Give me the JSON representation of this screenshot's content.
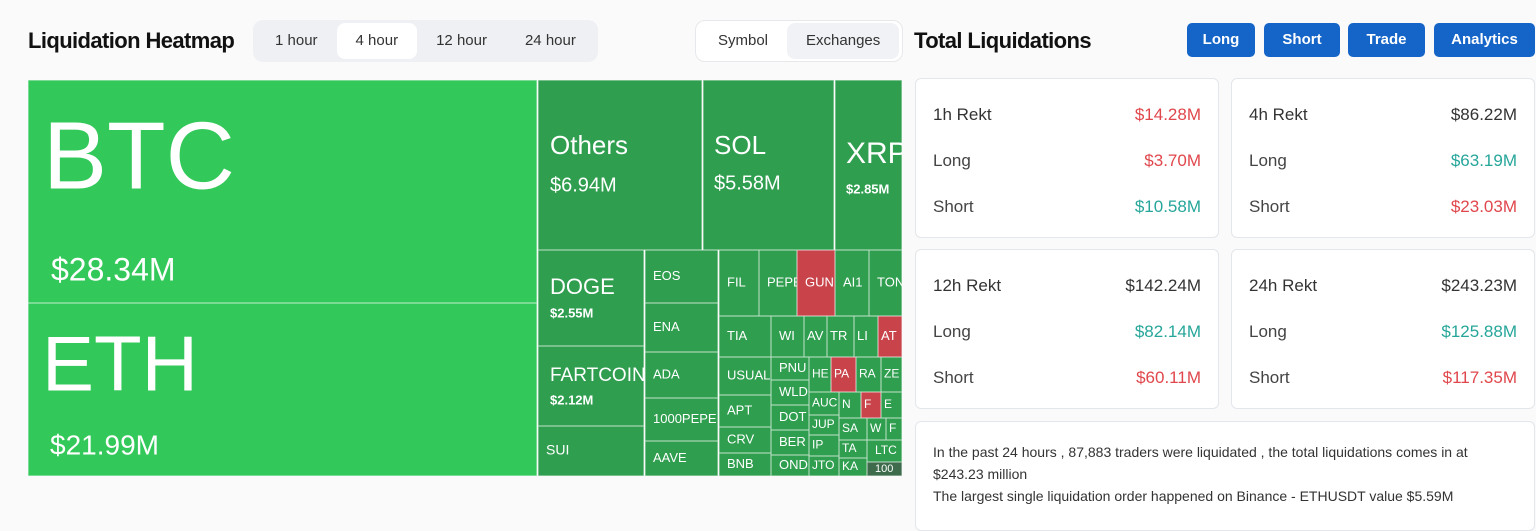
{
  "header": {
    "title": "Liquidation Heatmap",
    "time_tabs": [
      "1 hour",
      "4 hour",
      "12 hour",
      "24 hour"
    ],
    "selected_time_tab": 1,
    "view_tabs": [
      "Symbol",
      "Exchanges"
    ],
    "selected_view_tab": 0
  },
  "treemap": {
    "tiles": [
      {
        "label": "BTC",
        "value": "$28.34M",
        "color": "#33c95a"
      },
      {
        "label": "ETH",
        "value": "$21.99M",
        "color": "#33c95a"
      },
      {
        "label": "Others",
        "value": "$6.94M",
        "color": "#2f9e4f"
      },
      {
        "label": "SOL",
        "value": "$5.58M",
        "color": "#2f9e4f"
      },
      {
        "label": "XRP",
        "value": "$2.85M",
        "color": "#2f9e4f"
      },
      {
        "label": "DOGE",
        "value": "$2.55M",
        "color": "#2f9e4f"
      },
      {
        "label": "FARTCOIN",
        "value": "$2.12M",
        "color": "#2f9e4f"
      },
      {
        "label": "SUI",
        "color": "#2f9e4f"
      },
      {
        "label": "EOS",
        "color": "#2f9e4f"
      },
      {
        "label": "ENA",
        "color": "#2f9e4f"
      },
      {
        "label": "ADA",
        "color": "#2f9e4f"
      },
      {
        "label": "1000PEPE",
        "color": "#2f9e4f"
      },
      {
        "label": "AAVE",
        "color": "#2f9e4f"
      },
      {
        "label": "FIL",
        "color": "#2f9e4f"
      },
      {
        "label": "PEPE",
        "color": "#2f9e4f"
      },
      {
        "label": "GUN",
        "color": "#c9434a"
      },
      {
        "label": "AI1",
        "color": "#2f9e4f"
      },
      {
        "label": "TON",
        "color": "#2f9e4f"
      },
      {
        "label": "TIA",
        "color": "#2f9e4f"
      },
      {
        "label": "WI",
        "color": "#2f9e4f"
      },
      {
        "label": "AV",
        "color": "#2f9e4f"
      },
      {
        "label": "TR",
        "color": "#2f9e4f"
      },
      {
        "label": "LI",
        "color": "#2f9e4f"
      },
      {
        "label": "AT",
        "color": "#c9434a"
      },
      {
        "label": "USUAL",
        "color": "#2f9e4f"
      },
      {
        "label": "APT",
        "color": "#2f9e4f"
      },
      {
        "label": "CRV",
        "color": "#2f9e4f"
      },
      {
        "label": "BNB",
        "color": "#2f9e4f"
      },
      {
        "label": "PNU",
        "color": "#2f9e4f"
      },
      {
        "label": "WLD",
        "color": "#2f9e4f"
      },
      {
        "label": "DOT",
        "color": "#2f9e4f"
      },
      {
        "label": "BER",
        "color": "#2f9e4f"
      },
      {
        "label": "OND",
        "color": "#2f9e4f"
      },
      {
        "label": "HE",
        "color": "#2f9e4f"
      },
      {
        "label": "PA",
        "color": "#c9434a"
      },
      {
        "label": "RA",
        "color": "#2f9e4f"
      },
      {
        "label": "ZE",
        "color": "#2f9e4f"
      },
      {
        "label": "AUC",
        "color": "#2f9e4f"
      },
      {
        "label": "JUP",
        "color": "#2f9e4f"
      },
      {
        "label": "IP",
        "color": "#2f9e4f"
      },
      {
        "label": "JTO",
        "color": "#2f9e4f"
      },
      {
        "label": "N",
        "color": "#2f9e4f"
      },
      {
        "label": "F",
        "color": "#c9434a"
      },
      {
        "label": "E",
        "color": "#2f9e4f"
      },
      {
        "label": "SA",
        "color": "#2f9e4f"
      },
      {
        "label": "W",
        "color": "#2f9e4f"
      },
      {
        "label": "F",
        "color": "#2f9e4f"
      },
      {
        "label": "TA",
        "color": "#2f9e4f"
      },
      {
        "label": "LTC",
        "color": "#2f9e4f"
      },
      {
        "label": "KA",
        "color": "#2f9e4f"
      },
      {
        "label": "100",
        "color": "#3d6b4c"
      }
    ]
  },
  "totals": {
    "title": "Total Liquidations",
    "buttons": [
      "Long",
      "Short",
      "Trade",
      "Analytics"
    ],
    "cards": [
      {
        "title": "1h Rekt",
        "total": "$14.28M",
        "total_color": "#e0474c",
        "rows": [
          {
            "label": "Long",
            "value": "$3.70M",
            "color": "#e0474c"
          },
          {
            "label": "Short",
            "value": "$10.58M",
            "color": "#26a69a"
          }
        ]
      },
      {
        "title": "4h Rekt",
        "total": "$86.22M",
        "total_color": "#333333",
        "rows": [
          {
            "label": "Long",
            "value": "$63.19M",
            "color": "#26a69a"
          },
          {
            "label": "Short",
            "value": "$23.03M",
            "color": "#e0474c"
          }
        ]
      },
      {
        "title": "12h Rekt",
        "total": "$142.24M",
        "total_color": "#333333",
        "rows": [
          {
            "label": "Long",
            "value": "$82.14M",
            "color": "#26a69a"
          },
          {
            "label": "Short",
            "value": "$60.11M",
            "color": "#e0474c"
          }
        ]
      },
      {
        "title": "24h Rekt",
        "total": "$243.23M",
        "total_color": "#333333",
        "rows": [
          {
            "label": "Long",
            "value": "$125.88M",
            "color": "#26a69a"
          },
          {
            "label": "Short",
            "value": "$117.35M",
            "color": "#e0474c"
          }
        ]
      }
    ],
    "summary": [
      "In the past 24 hours , 87,883 traders were liquidated , the total liquidations comes in at $243.23 million",
      "The largest single liquidation order happened on Binance - ETHUSDT value $5.59M"
    ]
  }
}
